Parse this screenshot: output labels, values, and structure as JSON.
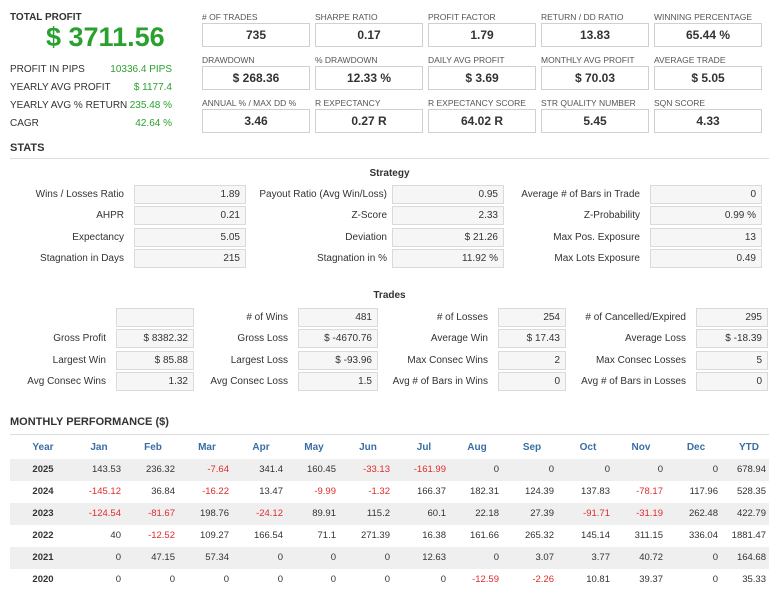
{
  "total_profit": {
    "label": "TOTAL PROFIT",
    "value": "$ 3711.56"
  },
  "left_stats": [
    {
      "label": "PROFIT IN PIPS",
      "value": "10336.4 PIPS"
    },
    {
      "label": "YEARLY AVG PROFIT",
      "value": "$ 1177.4"
    },
    {
      "label": "YEARLY AVG % RETURN",
      "value": "235.48 %"
    },
    {
      "label": "CAGR",
      "value": "42.64 %"
    }
  ],
  "metrics": [
    {
      "label": "# OF TRADES",
      "value": "735"
    },
    {
      "label": "SHARPE RATIO",
      "value": "0.17"
    },
    {
      "label": "PROFIT FACTOR",
      "value": "1.79"
    },
    {
      "label": "RETURN / DD RATIO",
      "value": "13.83"
    },
    {
      "label": "WINNING PERCENTAGE",
      "value": "65.44 %"
    },
    {
      "label": "DRAWDOWN",
      "value": "$ 268.36"
    },
    {
      "label": "% DRAWDOWN",
      "value": "12.33 %"
    },
    {
      "label": "DAILY AVG PROFIT",
      "value": "$ 3.69"
    },
    {
      "label": "MONTHLY AVG PROFIT",
      "value": "$ 70.03"
    },
    {
      "label": "AVERAGE TRADE",
      "value": "$ 5.05"
    },
    {
      "label": "ANNUAL % / MAX DD %",
      "value": "3.46"
    },
    {
      "label": "R EXPECTANCY",
      "value": "0.27 R"
    },
    {
      "label": "R EXPECTANCY SCORE",
      "value": "64.02 R"
    },
    {
      "label": "STR QUALITY NUMBER",
      "value": "5.45"
    },
    {
      "label": "SQN SCORE",
      "value": "4.33"
    }
  ],
  "stats_title": "STATS",
  "strategy": {
    "title": "Strategy",
    "rows": [
      [
        {
          "label": "Wins / Losses Ratio",
          "value": "1.89"
        },
        {
          "label": "Payout Ratio (Avg Win/Loss)",
          "value": "0.95"
        },
        {
          "label": "Average # of Bars in Trade",
          "value": "0"
        }
      ],
      [
        {
          "label": "AHPR",
          "value": "0.21"
        },
        {
          "label": "Z-Score",
          "value": "2.33"
        },
        {
          "label": "Z-Probability",
          "value": "0.99 %"
        }
      ],
      [
        {
          "label": "Expectancy",
          "value": "5.05"
        },
        {
          "label": "Deviation",
          "value": "$ 21.26"
        },
        {
          "label": "Max Pos. Exposure",
          "value": "13"
        }
      ],
      [
        {
          "label": "Stagnation in Days",
          "value": "215"
        },
        {
          "label": "Stagnation in %",
          "value": "11.92 %"
        },
        {
          "label": "Max Lots Exposure",
          "value": "0.49"
        }
      ]
    ]
  },
  "trades": {
    "title": "Trades",
    "rows": [
      [
        {
          "label": "",
          "value": ""
        },
        {
          "label": "# of Wins",
          "value": "481"
        },
        {
          "label": "# of Losses",
          "value": "254"
        },
        {
          "label": "# of Cancelled/Expired",
          "value": "295"
        }
      ],
      [
        {
          "label": "Gross Profit",
          "value": "$ 8382.32"
        },
        {
          "label": "Gross Loss",
          "value": "$ -4670.76"
        },
        {
          "label": "Average Win",
          "value": "$ 17.43"
        },
        {
          "label": "Average Loss",
          "value": "$ -18.39"
        }
      ],
      [
        {
          "label": "Largest Win",
          "value": "$ 85.88"
        },
        {
          "label": "Largest Loss",
          "value": "$ -93.96"
        },
        {
          "label": "Max Consec Wins",
          "value": "2"
        },
        {
          "label": "Max Consec Losses",
          "value": "5"
        }
      ],
      [
        {
          "label": "Avg Consec Wins",
          "value": "1.32"
        },
        {
          "label": "Avg Consec Loss",
          "value": "1.5"
        },
        {
          "label": "Avg # of Bars in Wins",
          "value": "0"
        },
        {
          "label": "Avg # of Bars in Losses",
          "value": "0"
        }
      ]
    ]
  },
  "monthly": {
    "title": "MONTHLY PERFORMANCE ($)",
    "headers": [
      "Year",
      "Jan",
      "Feb",
      "Mar",
      "Apr",
      "May",
      "Jun",
      "Jul",
      "Aug",
      "Sep",
      "Oct",
      "Nov",
      "Dec",
      "YTD"
    ],
    "rows": [
      [
        "2025",
        "143.53",
        "236.32",
        "-7.64",
        "341.4",
        "160.45",
        "-33.13",
        "-161.99",
        "0",
        "0",
        "0",
        "0",
        "0",
        "678.94"
      ],
      [
        "2024",
        "-145.12",
        "36.84",
        "-16.22",
        "13.47",
        "-9.99",
        "-1.32",
        "166.37",
        "182.31",
        "124.39",
        "137.83",
        "-78.17",
        "117.96",
        "528.35"
      ],
      [
        "2023",
        "-124.54",
        "-81.67",
        "198.76",
        "-24.12",
        "89.91",
        "115.2",
        "60.1",
        "22.18",
        "27.39",
        "-91.71",
        "-31.19",
        "262.48",
        "422.79"
      ],
      [
        "2022",
        "40",
        "-12.52",
        "109.27",
        "166.54",
        "71.1",
        "271.39",
        "16.38",
        "161.66",
        "265.32",
        "145.14",
        "311.15",
        "336.04",
        "1881.47"
      ],
      [
        "2021",
        "0",
        "47.15",
        "57.34",
        "0",
        "0",
        "0",
        "12.63",
        "0",
        "3.07",
        "3.77",
        "40.72",
        "0",
        "164.68"
      ],
      [
        "2020",
        "0",
        "0",
        "0",
        "0",
        "0",
        "0",
        "0",
        "-12.59",
        "-2.26",
        "10.81",
        "39.37",
        "0",
        "35.33"
      ]
    ]
  },
  "colors": {
    "positive": "#2aa12e",
    "negative": "#e02c2c",
    "header_blue": "#3a6ea5"
  }
}
